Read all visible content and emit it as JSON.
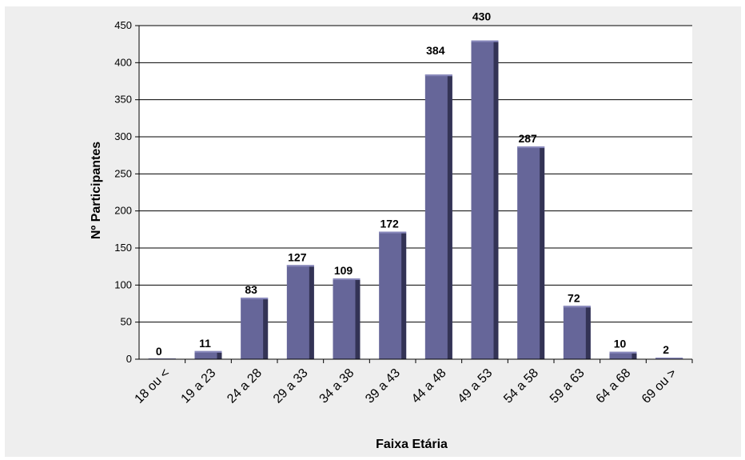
{
  "chart_data": {
    "type": "bar",
    "categories": [
      "18 ou <",
      "19 a 23",
      "24 a 28",
      "29 a 33",
      "34 a 38",
      "39 a 43",
      "44 a 48",
      "49 a 53",
      "54 a 58",
      "59 a 63",
      "64 a 68",
      "69 ou >"
    ],
    "values": [
      0,
      11,
      83,
      127,
      109,
      172,
      384,
      430,
      287,
      72,
      10,
      2
    ],
    "xlabel": "Faixa Etária",
    "ylabel": "Nº Participantes",
    "ylim": [
      0,
      450
    ],
    "yticks": [
      0,
      50,
      100,
      150,
      200,
      250,
      300,
      350,
      400,
      450
    ],
    "grid": true,
    "legend": "none",
    "colors": {
      "bar_front": "#666699",
      "bar_side": "#333355",
      "bar_top": "#8888bb",
      "plot_background": "#ffffff",
      "frame_background": "#eeeeee",
      "gridline": "#000000"
    }
  }
}
